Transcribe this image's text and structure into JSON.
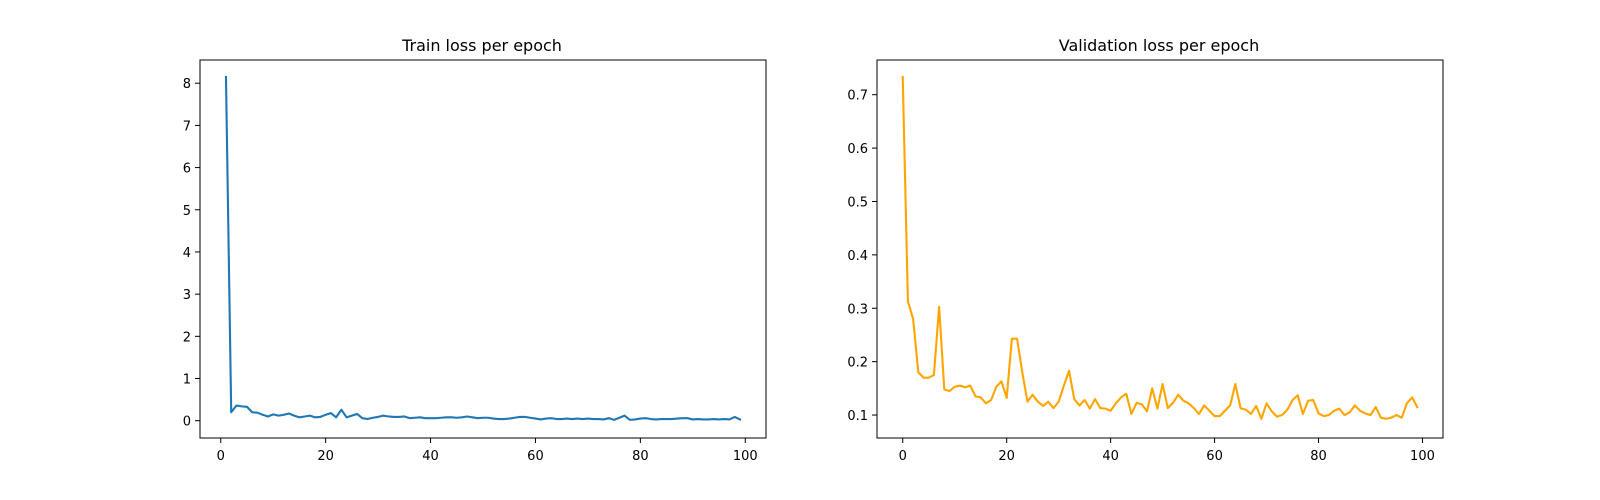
{
  "chart_data": [
    {
      "type": "line",
      "title": "Train loss per epoch",
      "xlabel": "",
      "ylabel": "",
      "xlim": [
        -3.95,
        103.95
      ],
      "ylim": [
        -0.41,
        8.55
      ],
      "xticks": [
        0,
        20,
        40,
        60,
        80,
        100
      ],
      "yticks": [
        0,
        1,
        2,
        3,
        4,
        5,
        6,
        7,
        8
      ],
      "grid": false,
      "color": "#1f77b4",
      "x": [
        1,
        2,
        3,
        4,
        5,
        6,
        7,
        8,
        9,
        10,
        11,
        12,
        13,
        14,
        15,
        16,
        17,
        18,
        19,
        20,
        21,
        22,
        23,
        24,
        25,
        26,
        27,
        28,
        29,
        30,
        31,
        32,
        33,
        34,
        35,
        36,
        37,
        38,
        39,
        40,
        41,
        42,
        43,
        44,
        45,
        46,
        47,
        48,
        49,
        50,
        51,
        52,
        53,
        54,
        55,
        56,
        57,
        58,
        59,
        60,
        61,
        62,
        63,
        64,
        65,
        66,
        67,
        68,
        69,
        70,
        71,
        72,
        73,
        74,
        75,
        76,
        77,
        78,
        79,
        80,
        81,
        82,
        83,
        84,
        85,
        86,
        87,
        88,
        89,
        90,
        91,
        92,
        93,
        94,
        95,
        96,
        97,
        98,
        99
      ],
      "y": [
        8.15,
        0.2,
        0.36,
        0.34,
        0.33,
        0.2,
        0.19,
        0.14,
        0.1,
        0.15,
        0.12,
        0.14,
        0.17,
        0.12,
        0.08,
        0.1,
        0.12,
        0.08,
        0.09,
        0.14,
        0.18,
        0.08,
        0.26,
        0.08,
        0.12,
        0.16,
        0.06,
        0.04,
        0.07,
        0.09,
        0.12,
        0.1,
        0.09,
        0.09,
        0.1,
        0.06,
        0.07,
        0.08,
        0.06,
        0.06,
        0.06,
        0.07,
        0.08,
        0.08,
        0.07,
        0.08,
        0.1,
        0.08,
        0.06,
        0.07,
        0.07,
        0.05,
        0.04,
        0.04,
        0.05,
        0.07,
        0.09,
        0.09,
        0.07,
        0.05,
        0.03,
        0.05,
        0.06,
        0.04,
        0.04,
        0.05,
        0.04,
        0.05,
        0.04,
        0.05,
        0.04,
        0.04,
        0.03,
        0.06,
        0.02,
        0.07,
        0.12,
        0.02,
        0.03,
        0.05,
        0.06,
        0.04,
        0.03,
        0.04,
        0.04,
        0.04,
        0.05,
        0.06,
        0.06,
        0.03,
        0.04,
        0.03,
        0.03,
        0.04,
        0.03,
        0.04,
        0.03,
        0.09,
        0.03
      ]
    },
    {
      "type": "line",
      "title": "Validation loss per epoch",
      "xlabel": "",
      "ylabel": "",
      "xlim": [
        -4.95,
        103.95
      ],
      "ylim": [
        0.057,
        0.765
      ],
      "xticks": [
        0,
        20,
        40,
        60,
        80,
        100
      ],
      "yticks": [
        0.1,
        0.2,
        0.3,
        0.4,
        0.5,
        0.6,
        0.7
      ],
      "grid": false,
      "color": "#ffa500",
      "x": [
        0,
        1,
        2,
        3,
        4,
        5,
        6,
        7,
        8,
        9,
        10,
        11,
        12,
        13,
        14,
        15,
        16,
        17,
        18,
        19,
        20,
        21,
        22,
        23,
        24,
        25,
        26,
        27,
        28,
        29,
        30,
        31,
        32,
        33,
        34,
        35,
        36,
        37,
        38,
        39,
        40,
        41,
        42,
        43,
        44,
        45,
        46,
        47,
        48,
        49,
        50,
        51,
        52,
        53,
        54,
        55,
        56,
        57,
        58,
        59,
        60,
        61,
        62,
        63,
        64,
        65,
        66,
        67,
        68,
        69,
        70,
        71,
        72,
        73,
        74,
        75,
        76,
        77,
        78,
        79,
        80,
        81,
        82,
        83,
        84,
        85,
        86,
        87,
        88,
        89,
        90,
        91,
        92,
        93,
        94,
        95,
        96,
        97,
        98,
        99
      ],
      "y": [
        0.733,
        0.313,
        0.28,
        0.18,
        0.17,
        0.17,
        0.175,
        0.303,
        0.148,
        0.145,
        0.153,
        0.155,
        0.152,
        0.155,
        0.135,
        0.133,
        0.122,
        0.128,
        0.153,
        0.163,
        0.132,
        0.243,
        0.243,
        0.18,
        0.125,
        0.138,
        0.125,
        0.117,
        0.125,
        0.113,
        0.125,
        0.155,
        0.183,
        0.13,
        0.118,
        0.128,
        0.112,
        0.13,
        0.113,
        0.112,
        0.108,
        0.122,
        0.133,
        0.14,
        0.102,
        0.123,
        0.12,
        0.107,
        0.15,
        0.112,
        0.158,
        0.113,
        0.123,
        0.138,
        0.127,
        0.122,
        0.113,
        0.102,
        0.118,
        0.108,
        0.098,
        0.098,
        0.108,
        0.118,
        0.158,
        0.113,
        0.11,
        0.102,
        0.117,
        0.093,
        0.122,
        0.107,
        0.097,
        0.1,
        0.11,
        0.128,
        0.137,
        0.102,
        0.127,
        0.128,
        0.103,
        0.098,
        0.1,
        0.108,
        0.112,
        0.1,
        0.105,
        0.118,
        0.108,
        0.103,
        0.1,
        0.115,
        0.095,
        0.093,
        0.095,
        0.1,
        0.095,
        0.122,
        0.133,
        0.115
      ]
    }
  ]
}
